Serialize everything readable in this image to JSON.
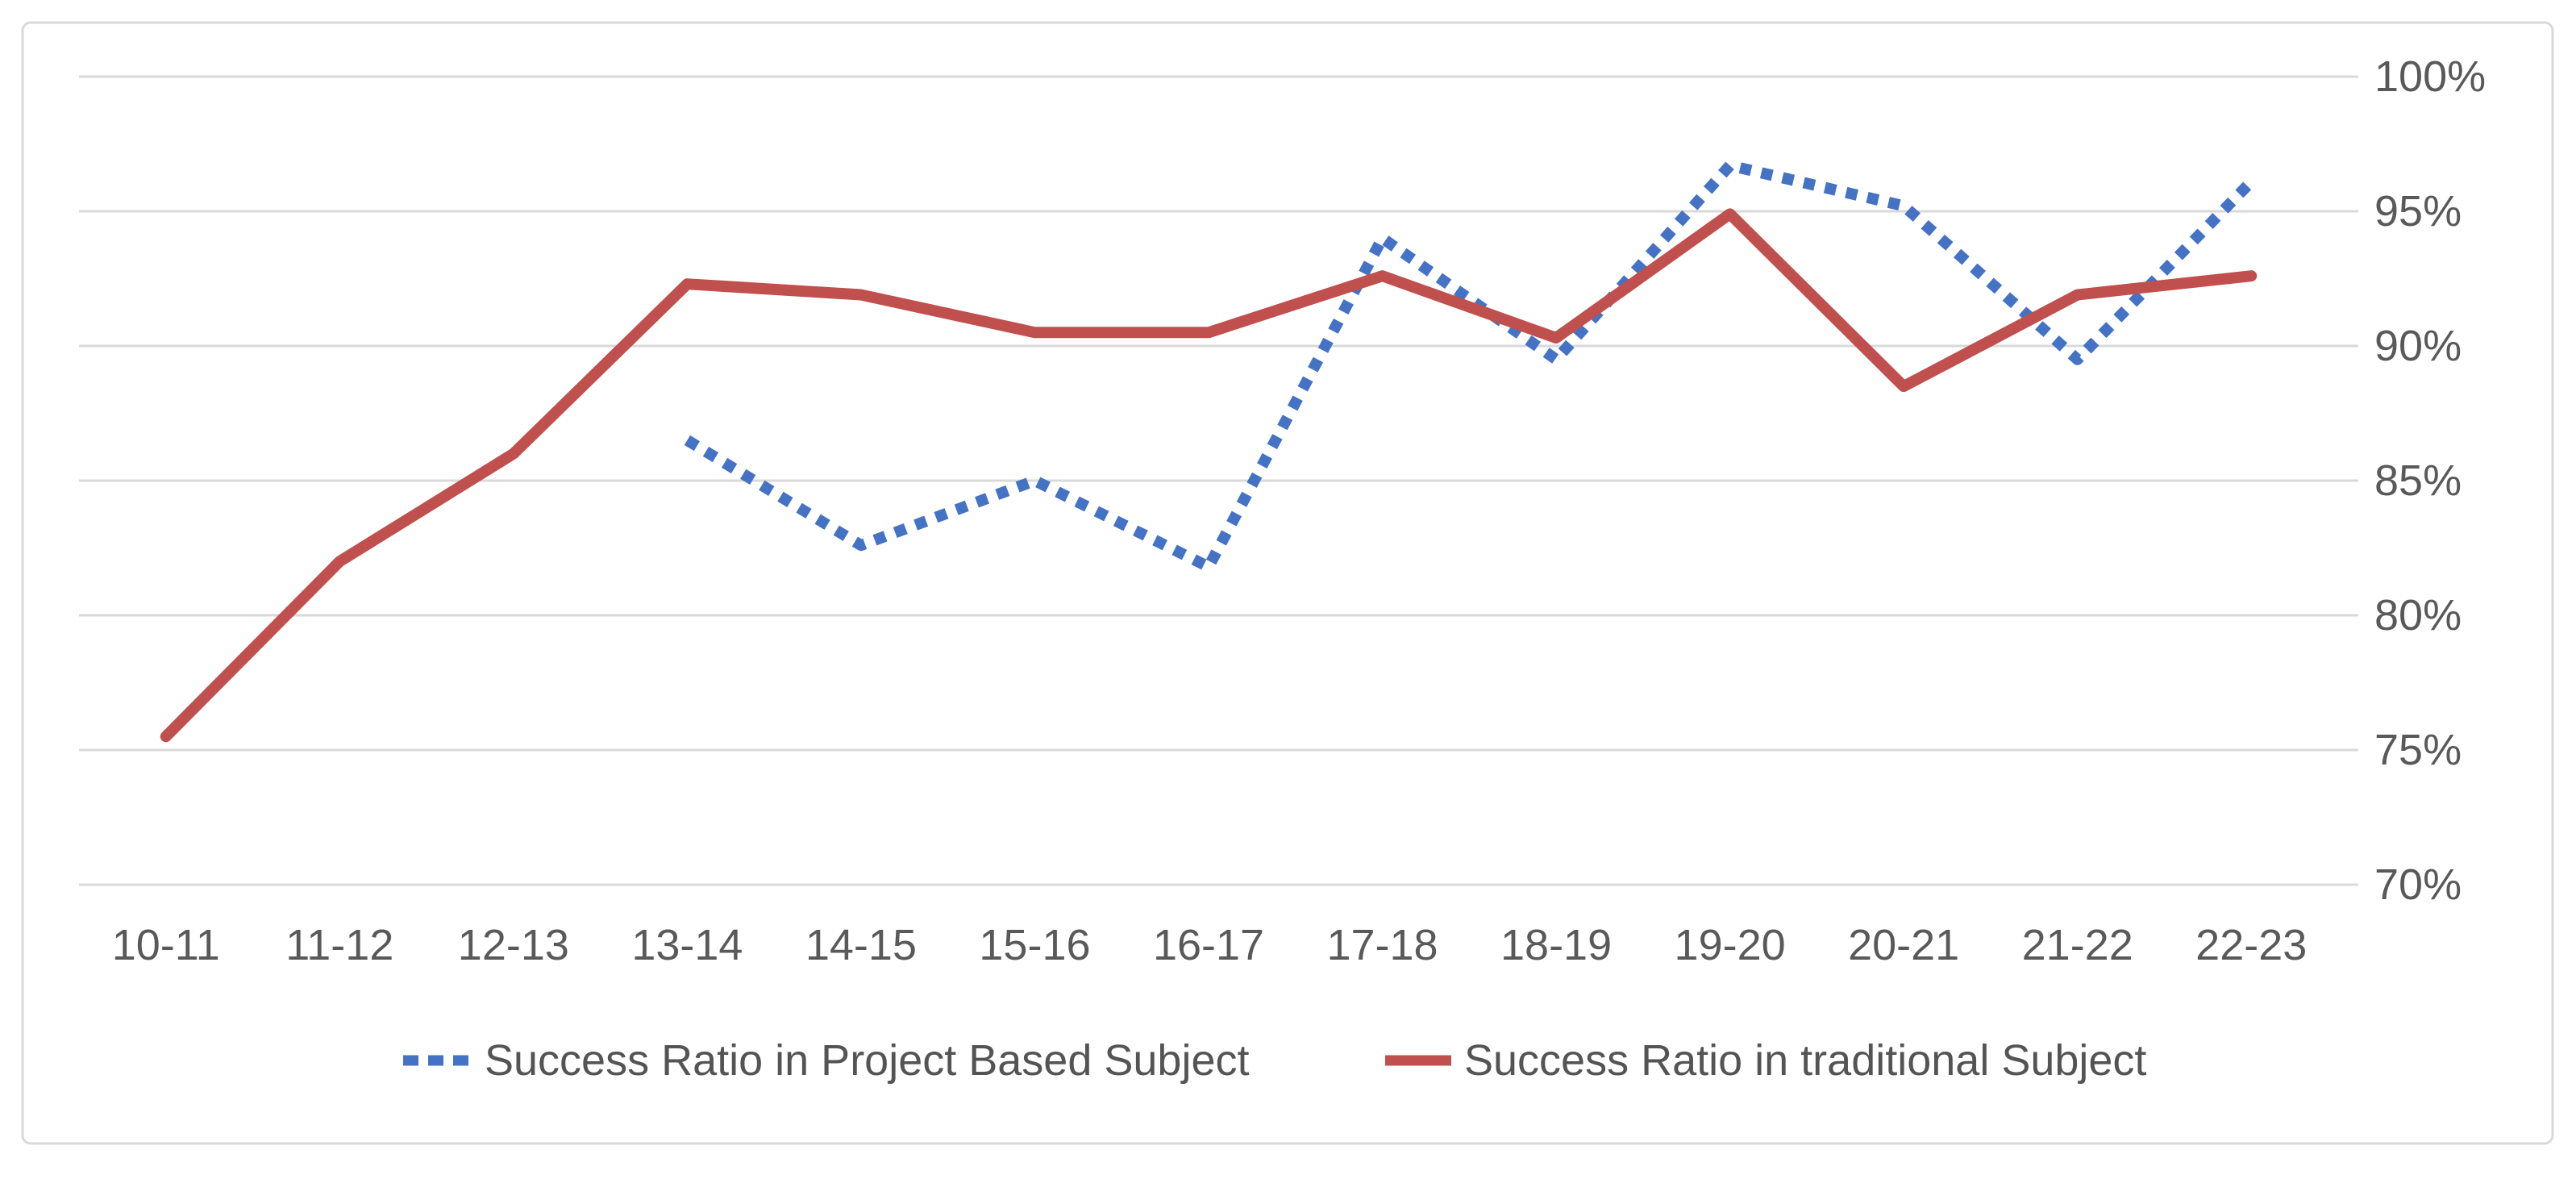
{
  "chart_data": {
    "type": "line",
    "title": "",
    "xlabel": "",
    "ylabel": "",
    "categories": [
      "10-11",
      "11-12",
      "12-13",
      "13-14",
      "14-15",
      "15-16",
      "16-17",
      "17-18",
      "18-19",
      "19-20",
      "20-21",
      "21-22",
      "22-23"
    ],
    "series": [
      {
        "name": "Success Ratio in Project Based Subject",
        "color": "#4472C4",
        "line_style": "square-dot",
        "values": [
          null,
          null,
          null,
          86.5,
          82.6,
          85.0,
          81.8,
          94.0,
          89.5,
          96.7,
          95.2,
          89.5,
          96.1
        ]
      },
      {
        "name": "Success Ratio in traditional Subject",
        "color": "#C0504D",
        "line_style": "solid",
        "values": [
          75.5,
          82.0,
          86.0,
          92.3,
          91.9,
          90.5,
          90.5,
          92.6,
          90.3,
          94.9,
          88.5,
          91.9,
          92.6
        ]
      }
    ],
    "ylim": [
      70,
      100
    ],
    "y_tick_step": 5,
    "y_tick_labels_top_to_bottom": [
      "100%",
      "95%",
      "90%",
      "85%",
      "80%",
      "75%",
      "70%"
    ],
    "y_axis_side": "right",
    "grid": true,
    "legend_position": "bottom",
    "colors": {
      "gridline": "#D9D9D9",
      "frame": "#D9D9D9",
      "axis_labels": "#595959",
      "legend_text": "#545454",
      "background": "#FFFFFF"
    }
  }
}
